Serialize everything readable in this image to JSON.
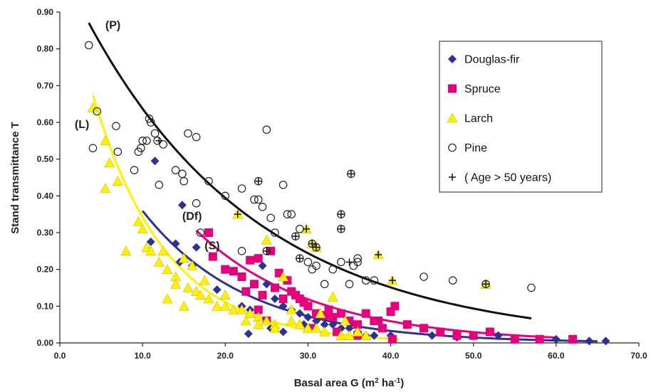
{
  "chart_data": {
    "type": "scatter",
    "xlabel": "Basal area G (m",
    "xlabel_sup1": "2",
    "xlabel_mid": " ha",
    "xlabel_sup2": "-1",
    "xlabel_end": ")",
    "ylabel": "Stand transmittance T",
    "xlim": [
      0,
      70
    ],
    "ylim": [
      0,
      0.9
    ],
    "x_ticks": [
      "0.0",
      "10.0",
      "20.0",
      "30.0",
      "40.0",
      "50.0",
      "60.0",
      "70.0"
    ],
    "y_ticks": [
      "0.00",
      "0.10",
      "0.20",
      "0.30",
      "0.40",
      "0.50",
      "0.60",
      "0.70",
      "0.80",
      "0.90"
    ],
    "grid": false,
    "legend_position": "top-right",
    "colors": {
      "douglas": "#2e3192",
      "spruce": "#e5007e",
      "larch": "#fff200",
      "larch_edge": "#c9bd00",
      "pine_edge": "#222222",
      "curve_p": "#111111",
      "curve_l": "#fff200",
      "curve_df": "#2e3192",
      "curve_s": "#e5007e"
    },
    "legend": [
      {
        "key": "douglas",
        "label": "Douglas-fir",
        "marker": "diamond"
      },
      {
        "key": "spruce",
        "label": "Spruce",
        "marker": "square"
      },
      {
        "key": "larch",
        "label": "Larch",
        "marker": "triangle"
      },
      {
        "key": "pine",
        "label": "Pine",
        "marker": "circle"
      },
      {
        "key": "age",
        "label": "( Age > 50 years)",
        "marker": "plus"
      }
    ],
    "curve_labels": [
      {
        "text": "(P)",
        "x": 5.5,
        "y": 0.855
      },
      {
        "text": "(L)",
        "x": 1.8,
        "y": 0.585
      },
      {
        "text": "(Df)",
        "x": 14.8,
        "y": 0.335
      },
      {
        "text": "(S)",
        "x": 17.5,
        "y": 0.255
      }
    ],
    "curves": [
      {
        "key": "curve_p",
        "x_range": [
          3.5,
          57
        ],
        "a": 1.03,
        "b": 0.048
      },
      {
        "key": "curve_l",
        "x_range": [
          4,
          41
        ],
        "a": 1.06,
        "b": 0.113
      },
      {
        "key": "curve_df",
        "x_range": [
          10,
          65
        ],
        "a": 0.8,
        "b": 0.08
      },
      {
        "key": "curve_s",
        "x_range": [
          16.5,
          60
        ],
        "a": 0.97,
        "b": 0.07
      }
    ],
    "series": [
      {
        "name": "Douglas-fir",
        "key": "douglas",
        "marker": "diamond",
        "points": [
          [
            11.5,
            0.495
          ],
          [
            14.8,
            0.375
          ],
          [
            11,
            0.275
          ],
          [
            14,
            0.27
          ],
          [
            16.5,
            0.26
          ],
          [
            14.5,
            0.22
          ],
          [
            16,
            0.21
          ],
          [
            19,
            0.145
          ],
          [
            22,
            0.1
          ],
          [
            23,
            0.09
          ],
          [
            22.8,
            0.025
          ],
          [
            24.5,
            0.21
          ],
          [
            25,
            0.16
          ],
          [
            26,
            0.12
          ],
          [
            27,
            0.1
          ],
          [
            28,
            0.09
          ],
          [
            29,
            0.08
          ],
          [
            30,
            0.07
          ],
          [
            31,
            0.06
          ],
          [
            32,
            0.05
          ],
          [
            33,
            0.05
          ],
          [
            34,
            0.04
          ],
          [
            35,
            0.04
          ],
          [
            36,
            0.03
          ],
          [
            27,
            0.03
          ],
          [
            25.5,
            0.04
          ],
          [
            29.5,
            0.05
          ],
          [
            37,
            0.02
          ],
          [
            38,
            0.02
          ],
          [
            40,
            0.02
          ],
          [
            42,
            0.05
          ],
          [
            45,
            0.02
          ],
          [
            48,
            0.015
          ],
          [
            50,
            0.02
          ],
          [
            53,
            0.02
          ],
          [
            55,
            0.01
          ],
          [
            58,
            0.01
          ],
          [
            60,
            0.01
          ],
          [
            64,
            0.005
          ],
          [
            66,
            0.005
          ]
        ]
      },
      {
        "name": "Spruce",
        "key": "spruce",
        "marker": "square",
        "points": [
          [
            18,
            0.3
          ],
          [
            18.5,
            0.235
          ],
          [
            20,
            0.2
          ],
          [
            21,
            0.195
          ],
          [
            22,
            0.18
          ],
          [
            23,
            0.225
          ],
          [
            24,
            0.23
          ],
          [
            25.5,
            0.25
          ],
          [
            26,
            0.15
          ],
          [
            27,
            0.12
          ],
          [
            28,
            0.14
          ],
          [
            29,
            0.12
          ],
          [
            30,
            0.1
          ],
          [
            31,
            0.08
          ],
          [
            32,
            0.075
          ],
          [
            33,
            0.07
          ],
          [
            34,
            0.08
          ],
          [
            35,
            0.06
          ],
          [
            36,
            0.05
          ],
          [
            37,
            0.08
          ],
          [
            38,
            0.06
          ],
          [
            39,
            0.04
          ],
          [
            40,
            0.085
          ],
          [
            40.5,
            0.1
          ],
          [
            42,
            0.05
          ],
          [
            44,
            0.04
          ],
          [
            46,
            0.03
          ],
          [
            48,
            0.02
          ],
          [
            50,
            0.02
          ],
          [
            52,
            0.03
          ],
          [
            55,
            0.01
          ],
          [
            58,
            0.01
          ],
          [
            62,
            0.01
          ],
          [
            23.5,
            0.16
          ],
          [
            24.5,
            0.13
          ],
          [
            26.5,
            0.19
          ],
          [
            28.5,
            0.13
          ],
          [
            29.5,
            0.11
          ],
          [
            24,
            0.09
          ],
          [
            25,
            0.06
          ],
          [
            30.5,
            0.04
          ],
          [
            33.5,
            0.03
          ],
          [
            36,
            0.02
          ],
          [
            40.2,
            0.01
          ],
          [
            27.5,
            0.17
          ],
          [
            22.5,
            0.14
          ],
          [
            32.5,
            0.09
          ],
          [
            38.5,
            0.06
          ]
        ]
      },
      {
        "name": "Larch",
        "key": "larch",
        "marker": "triangle",
        "points": [
          [
            4,
            0.64
          ],
          [
            5.5,
            0.55
          ],
          [
            6,
            0.49
          ],
          [
            5.5,
            0.42
          ],
          [
            7,
            0.44
          ],
          [
            8,
            0.25
          ],
          [
            9.5,
            0.33
          ],
          [
            10,
            0.31
          ],
          [
            10.5,
            0.26
          ],
          [
            11,
            0.25
          ],
          [
            12,
            0.22
          ],
          [
            13,
            0.2
          ],
          [
            14,
            0.18
          ],
          [
            15,
            0.23
          ],
          [
            15.5,
            0.15
          ],
          [
            16.5,
            0.14
          ],
          [
            17,
            0.13
          ],
          [
            18,
            0.12
          ],
          [
            19,
            0.1
          ],
          [
            20,
            0.1
          ],
          [
            21,
            0.09
          ],
          [
            22,
            0.09
          ],
          [
            23,
            0.08
          ],
          [
            24,
            0.07
          ],
          [
            25,
            0.28
          ],
          [
            25,
            0.06
          ],
          [
            26,
            0.05
          ],
          [
            27,
            0.18
          ],
          [
            28,
            0.06
          ],
          [
            29,
            0.05
          ],
          [
            30,
            0.04
          ],
          [
            31,
            0.04
          ],
          [
            32,
            0.03
          ],
          [
            33,
            0.125
          ],
          [
            34,
            0.02
          ],
          [
            35,
            0.02
          ],
          [
            36,
            0.03
          ],
          [
            37,
            0.02
          ],
          [
            21.5,
            0.35
          ],
          [
            29.8,
            0.31
          ],
          [
            30.5,
            0.27
          ],
          [
            31,
            0.26
          ],
          [
            38.5,
            0.24
          ],
          [
            40.2,
            0.17
          ],
          [
            51.5,
            0.16
          ],
          [
            12.5,
            0.25
          ],
          [
            14,
            0.16
          ],
          [
            16,
            0.21
          ],
          [
            17.5,
            0.17
          ],
          [
            20,
            0.13
          ],
          [
            22.5,
            0.06
          ],
          [
            24,
            0.05
          ],
          [
            26,
            0.04
          ],
          [
            28,
            0.09
          ],
          [
            31.5,
            0.08
          ],
          [
            34.5,
            0.06
          ],
          [
            13,
            0.12
          ],
          [
            15,
            0.1
          ]
        ]
      },
      {
        "name": "Pine",
        "key": "pine",
        "marker": "circle",
        "points": [
          [
            3.5,
            0.81
          ],
          [
            4.5,
            0.63
          ],
          [
            4,
            0.53
          ],
          [
            6.8,
            0.59
          ],
          [
            7,
            0.52
          ],
          [
            9,
            0.47
          ],
          [
            9.5,
            0.52
          ],
          [
            9.8,
            0.53
          ],
          [
            10,
            0.55
          ],
          [
            10.5,
            0.55
          ],
          [
            10.8,
            0.61
          ],
          [
            11,
            0.6
          ],
          [
            11.5,
            0.57
          ],
          [
            11.8,
            0.55
          ],
          [
            12.5,
            0.54
          ],
          [
            12,
            0.43
          ],
          [
            14,
            0.47
          ],
          [
            14.8,
            0.46
          ],
          [
            15,
            0.44
          ],
          [
            15.5,
            0.57
          ],
          [
            16.5,
            0.56
          ],
          [
            16.5,
            0.38
          ],
          [
            17,
            0.3
          ],
          [
            18,
            0.44
          ],
          [
            20,
            0.4
          ],
          [
            22,
            0.42
          ],
          [
            22,
            0.25
          ],
          [
            23.5,
            0.39
          ],
          [
            24,
            0.39
          ],
          [
            24.5,
            0.37
          ],
          [
            25,
            0.58
          ],
          [
            25,
            0.25
          ],
          [
            25.5,
            0.34
          ],
          [
            26,
            0.3
          ],
          [
            27,
            0.43
          ],
          [
            27.5,
            0.35
          ],
          [
            28,
            0.35
          ],
          [
            28.5,
            0.29
          ],
          [
            29,
            0.23
          ],
          [
            30,
            0.22
          ],
          [
            30.5,
            0.2
          ],
          [
            31,
            0.21
          ],
          [
            32,
            0.16
          ],
          [
            33,
            0.2
          ],
          [
            34,
            0.22
          ],
          [
            35,
            0.16
          ],
          [
            35.5,
            0.21
          ],
          [
            36,
            0.22
          ],
          [
            37,
            0.17
          ],
          [
            38,
            0.17
          ],
          [
            44,
            0.18
          ],
          [
            47.5,
            0.17
          ],
          [
            51.5,
            0.16
          ],
          [
            57,
            0.15
          ],
          [
            24,
            0.44
          ],
          [
            34,
            0.35
          ],
          [
            34,
            0.31
          ],
          [
            35.2,
            0.46
          ],
          [
            29,
            0.31
          ],
          [
            36,
            0.23
          ],
          [
            30.5,
            0.27
          ],
          [
            31,
            0.26
          ]
        ]
      }
    ],
    "age_over_50_points": [
      [
        12,
        0.55
      ],
      [
        21.5,
        0.35
      ],
      [
        24,
        0.44
      ],
      [
        25,
        0.25
      ],
      [
        28.5,
        0.29
      ],
      [
        29,
        0.23
      ],
      [
        29.8,
        0.31
      ],
      [
        30.5,
        0.27
      ],
      [
        31,
        0.26
      ],
      [
        34,
        0.35
      ],
      [
        34,
        0.31
      ],
      [
        35.2,
        0.46
      ],
      [
        35,
        0.22
      ],
      [
        38.5,
        0.24
      ],
      [
        40.2,
        0.17
      ],
      [
        51.5,
        0.16
      ]
    ]
  }
}
